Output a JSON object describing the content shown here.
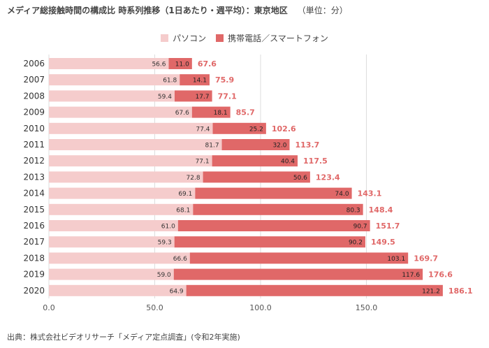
{
  "header": {
    "title": "メディア総接触時間の構成比 時系列推移（1日あたり・週平均）：東京地区",
    "unit": "（単位：分）"
  },
  "source": "出典：株式会社ビデオリサーチ「メディア定点調査」(令和2年実施)",
  "colors": {
    "pc": "#f5cccc",
    "mobile": "#e06868",
    "total": "#e06868",
    "grid": "#dddddd"
  },
  "chart_data": {
    "type": "bar",
    "orientation": "horizontal",
    "stacked": true,
    "categories": [
      "2006",
      "2007",
      "2008",
      "2009",
      "2010",
      "2011",
      "2012",
      "2013",
      "2014",
      "2015",
      "2016",
      "2017",
      "2018",
      "2019",
      "2020"
    ],
    "series": [
      {
        "name": "パソコン",
        "values": [
          56.6,
          61.8,
          59.4,
          67.6,
          77.4,
          81.7,
          77.1,
          72.8,
          69.1,
          68.1,
          61.0,
          59.3,
          66.6,
          59.0,
          64.9
        ]
      },
      {
        "name": "携帯電話／スマートフォン",
        "values": [
          11.0,
          14.1,
          17.7,
          18.1,
          25.2,
          32.0,
          40.4,
          50.6,
          74.0,
          80.3,
          90.7,
          90.2,
          103.1,
          117.6,
          121.2
        ]
      }
    ],
    "totals": [
      67.6,
      75.9,
      77.1,
      85.7,
      102.6,
      113.7,
      117.5,
      123.4,
      143.1,
      148.4,
      151.7,
      149.5,
      169.7,
      176.6,
      186.1
    ],
    "value_labels": {
      "pc": [
        "56.6",
        "61.8",
        "59.4",
        "67.6",
        "77.4",
        "81.7",
        "77.1",
        "72.8",
        "69.1",
        "68.1",
        "61.0",
        "59.3",
        "66.6",
        "59.0",
        "64.9"
      ],
      "mobile": [
        "11.0",
        "14.1",
        "17.7",
        "18.1",
        "25.2",
        "32.0",
        "40.4",
        "50.6",
        "74.0",
        "80.3",
        "90.7",
        "90.2",
        "103.1",
        "117.6",
        "121.2"
      ],
      "totals": [
        "67.6",
        "75.9",
        "77.1",
        "85.7",
        "102.6",
        "113.7",
        "117.5",
        "123.4",
        "143.1",
        "148.4",
        "151.7",
        "149.5",
        "169.7",
        "176.6",
        "186.1"
      ]
    },
    "xlim": [
      0,
      200
    ],
    "xticks": [
      0,
      50,
      100,
      150
    ],
    "xtick_labels": [
      "0.0",
      "50.0",
      "100.0",
      "150.0"
    ],
    "grid": true,
    "legend_position": "top-center"
  }
}
